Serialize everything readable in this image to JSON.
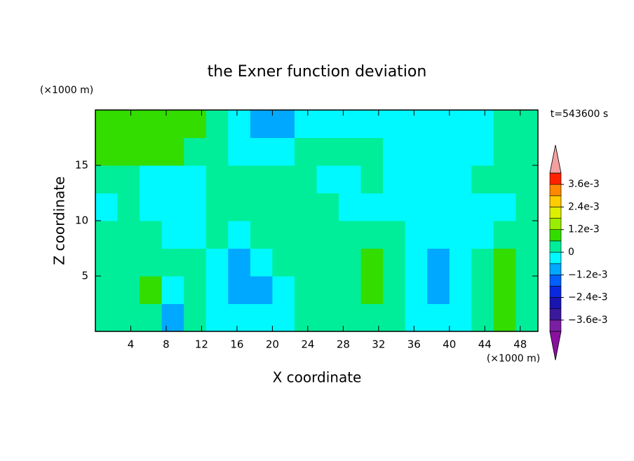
{
  "chart_data": {
    "type": "contour",
    "title": "the Exner function deviation",
    "x_label": "X coordinate",
    "y_label": "Z coordinate",
    "x_unit": "(×1000 m)",
    "y_unit": "(×1000 m)",
    "annotation": "t=543600 s",
    "xlim": [
      0,
      50
    ],
    "ylim": [
      0,
      20
    ],
    "xticks": [
      4,
      8,
      12,
      16,
      20,
      24,
      28,
      32,
      36,
      40,
      44,
      48
    ],
    "yticks": [
      5,
      10,
      15
    ],
    "x": [
      1.25,
      3.75,
      6.25,
      8.75,
      11.25,
      13.75,
      16.25,
      18.75,
      21.25,
      23.75,
      26.25,
      28.75,
      31.25,
      33.75,
      36.25,
      38.75,
      41.25,
      43.75,
      46.25,
      48.75
    ],
    "y": [
      1.25,
      3.75,
      6.25,
      8.75,
      11.25,
      13.75,
      16.25,
      18.75
    ],
    "z": [
      [
        0.0003,
        0.0003,
        0.0003,
        -0.0009,
        0.0003,
        -0.0003,
        -0.0003,
        -0.0003,
        -0.0003,
        0.0003,
        0.0003,
        0.0003,
        0.0003,
        0.0003,
        -0.0003,
        -0.0003,
        -0.0003,
        0.0003,
        0.0009,
        0.0003
      ],
      [
        0.0003,
        0.0003,
        0.0009,
        -0.0003,
        0.0003,
        -0.0003,
        -0.0009,
        -0.0009,
        -0.0003,
        0.0003,
        0.0003,
        0.0003,
        0.0009,
        0.0003,
        -0.0003,
        -0.0009,
        -0.0003,
        0.0003,
        0.0009,
        0.0003
      ],
      [
        0.0003,
        0.0003,
        0.0003,
        0.0003,
        0.0003,
        -0.0003,
        -0.0009,
        -0.0003,
        0.0003,
        0.0003,
        0.0003,
        0.0003,
        0.0009,
        0.0003,
        -0.0003,
        -0.0009,
        -0.0003,
        0.0003,
        0.0009,
        0.0003
      ],
      [
        0.0003,
        0.0003,
        0.0003,
        -0.0003,
        -0.0003,
        0.0003,
        -0.0003,
        0.0003,
        0.0003,
        0.0003,
        0.0003,
        0.0003,
        0.0003,
        0.0003,
        -0.0003,
        -0.0003,
        -0.0003,
        -0.0003,
        0.0003,
        0.0003
      ],
      [
        -0.0003,
        0.0003,
        -0.0003,
        -0.0003,
        -0.0003,
        0.0003,
        0.0003,
        0.0003,
        0.0003,
        0.0003,
        0.0003,
        -0.0003,
        -0.0003,
        -0.0003,
        -0.0003,
        -0.0003,
        -0.0003,
        -0.0003,
        -0.0003,
        0.0003
      ],
      [
        0.0003,
        0.0003,
        -0.0003,
        -0.0003,
        -0.0003,
        0.0003,
        0.0003,
        0.0003,
        0.0003,
        0.0003,
        -0.0003,
        -0.0003,
        0.0003,
        -0.0003,
        -0.0003,
        -0.0003,
        -0.0003,
        0.0003,
        0.0003,
        0.0003
      ],
      [
        0.0009,
        0.0009,
        0.0009,
        0.0009,
        0.0003,
        0.0003,
        -0.0003,
        -0.0003,
        -0.0003,
        0.0003,
        0.0003,
        0.0003,
        0.0003,
        -0.0003,
        -0.0003,
        -0.0003,
        -0.0003,
        -0.0003,
        0.0003,
        0.0003
      ],
      [
        0.0009,
        0.0009,
        0.0009,
        0.0009,
        0.0009,
        0.0003,
        -0.0003,
        -0.0009,
        -0.0009,
        -0.0003,
        -0.0003,
        -0.0003,
        -0.0003,
        -0.0003,
        -0.0003,
        -0.0003,
        -0.0003,
        -0.0003,
        0.0003,
        0.0003
      ]
    ],
    "levels": [
      -0.0042,
      -0.0036,
      -0.003,
      -0.0024,
      -0.0018,
      -0.0012,
      -0.0006,
      0,
      0.0006,
      0.0012,
      0.0018,
      0.0024,
      0.003,
      0.0036,
      0.0042
    ],
    "colors": [
      "#7a1fa2",
      "#3a1a9a",
      "#1a14b0",
      "#0a28e0",
      "#0060ff",
      "#00a8ff",
      "#00f8ff",
      "#00ee99",
      "#33dd00",
      "#99ee00",
      "#ddee00",
      "#ffcc00",
      "#ff8800",
      "#ff2200"
    ],
    "under_color": "#8a10a0",
    "over_color": "#f4a0a0",
    "cticks": [
      {
        "value": 0.0036,
        "label": "3.6e-3"
      },
      {
        "value": 0.0024,
        "label": "2.4e-3"
      },
      {
        "value": 0.0012,
        "label": "1.2e-3"
      },
      0,
      {
        "value": -0.0012,
        "label": "−1.2e-3"
      },
      {
        "value": -0.0024,
        "label": "−2.4e-3"
      },
      {
        "value": -0.0036,
        "label": "−3.6e-3"
      }
    ]
  }
}
